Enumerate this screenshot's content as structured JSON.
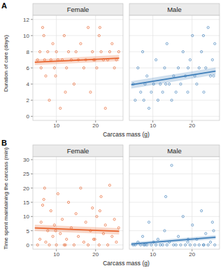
{
  "chart_data": [
    {
      "type": "scatter",
      "annotation": "A",
      "y_label": "Duration of care (days)",
      "x_label": "Carcass mass (g)",
      "xlim": [
        4,
        27
      ],
      "xticks": [
        10,
        20
      ],
      "ylim": [
        -0.5,
        12.5
      ],
      "yticks": [
        0,
        2,
        4,
        6,
        8,
        10,
        12
      ],
      "grid": true,
      "marker": "circle",
      "facets": [
        {
          "name": "Female",
          "color": "#e8632c",
          "x": [
            5.2,
            5.8,
            6.1,
            6.5,
            7.0,
            7.3,
            7.8,
            8.2,
            8.6,
            9.1,
            9.5,
            10.0,
            10.4,
            11.0,
            11.5,
            12.0,
            12.6,
            13.1,
            13.8,
            14.5,
            15.0,
            15.6,
            16.2,
            17.0,
            17.5,
            18.1,
            18.7,
            19.2,
            19.8,
            20.3,
            20.9,
            21.4,
            22.0,
            22.5,
            23.1,
            23.6,
            24.2,
            24.8,
            25.3,
            25.9,
            6.8,
            12.3,
            19.5,
            21.1,
            9.8
          ],
          "values": [
            7,
            8,
            6,
            11,
            7,
            5,
            8,
            2,
            7,
            9,
            6,
            8,
            7,
            1,
            7,
            10,
            6,
            8,
            7,
            4,
            8,
            7,
            9,
            6,
            7,
            11,
            3,
            8,
            7,
            6,
            10,
            8,
            7,
            1,
            7,
            8,
            9,
            6,
            7,
            8,
            10,
            3,
            7,
            11,
            5
          ],
          "trend": {
            "x": [
              4.5,
              26
            ],
            "values": [
              6.7,
              7.2
            ],
            "lower": [
              6.35,
              6.85
            ],
            "upper": [
              7.05,
              7.6
            ]
          }
        },
        {
          "name": "Male",
          "color": "#3f7fba",
          "x": [
            5.0,
            5.5,
            6.2,
            6.9,
            7.4,
            8.0,
            8.5,
            9.0,
            9.6,
            10.2,
            10.8,
            11.3,
            11.9,
            12.5,
            13.0,
            13.6,
            14.2,
            14.8,
            15.3,
            15.9,
            16.5,
            17.1,
            17.7,
            18.3,
            18.9,
            19.5,
            20.1,
            20.7,
            21.2,
            21.8,
            22.4,
            23.0,
            23.5,
            24.1,
            24.7,
            25.2,
            25.8,
            7.7,
            13.3,
            19.0,
            22.9,
            25.5
          ],
          "values": [
            4,
            2,
            6,
            3,
            8,
            4,
            5,
            1,
            3,
            4,
            7,
            2,
            4,
            3,
            6,
            9,
            4,
            2,
            5,
            3,
            6,
            4,
            8,
            5,
            3,
            7,
            10,
            5,
            4,
            6,
            8,
            3,
            6,
            11,
            5,
            7,
            9,
            2,
            4,
            6,
            10,
            5
          ],
          "trend": {
            "x": [
              4.5,
              26
            ],
            "values": [
              3.9,
              5.6
            ],
            "lower": [
              3.45,
              5.15
            ],
            "upper": [
              4.35,
              6.05
            ]
          }
        }
      ]
    },
    {
      "type": "scatter",
      "annotation": "B",
      "y_label": "Time spent maintaining the carcass (min)",
      "x_label": "Carcass mass (g)",
      "xlim": [
        4,
        27
      ],
      "xticks": [
        10,
        20
      ],
      "ylim": [
        -1.5,
        31
      ],
      "yticks": [
        0,
        5,
        10,
        15,
        20,
        25,
        30
      ],
      "grid": true,
      "marker": "circle",
      "facets": [
        {
          "name": "Female",
          "color": "#e8632c",
          "x": [
            5.2,
            5.8,
            6.1,
            6.5,
            7.0,
            7.3,
            7.8,
            8.2,
            8.6,
            9.1,
            9.5,
            10.0,
            10.4,
            11.0,
            11.5,
            12.0,
            12.6,
            13.1,
            13.8,
            14.5,
            15.0,
            15.6,
            16.2,
            17.0,
            17.5,
            18.1,
            18.7,
            19.2,
            19.8,
            20.3,
            20.9,
            21.4,
            22.0,
            22.5,
            23.1,
            23.6,
            24.2,
            24.8,
            25.3,
            25.9,
            6.8,
            12.3,
            19.5,
            21.1,
            9.8
          ],
          "values": [
            0,
            2,
            8,
            14,
            20,
            1,
            5,
            0,
            12,
            3,
            7,
            0,
            18,
            4,
            9,
            0,
            2,
            15,
            6,
            0,
            11,
            3,
            20,
            1,
            8,
            0,
            5,
            13,
            2,
            10,
            0,
            17,
            4,
            7,
            0,
            21,
            3,
            9,
            1,
            6,
            16,
            0,
            2,
            12,
            5
          ],
          "trend": {
            "x": [
              4.5,
              26
            ],
            "values": [
              6.0,
              4.8
            ],
            "lower": [
              4.9,
              3.7
            ],
            "upper": [
              7.1,
              5.9
            ]
          }
        },
        {
          "name": "Male",
          "color": "#3f7fba",
          "x": [
            5.0,
            5.5,
            6.2,
            6.9,
            7.4,
            8.0,
            8.5,
            9.0,
            9.6,
            10.2,
            10.8,
            11.3,
            11.9,
            12.5,
            13.0,
            13.6,
            14.2,
            14.8,
            15.3,
            15.9,
            16.5,
            17.1,
            17.7,
            18.3,
            18.9,
            19.5,
            20.1,
            20.7,
            21.2,
            21.8,
            22.4,
            23.0,
            23.5,
            24.1,
            24.7,
            25.2,
            25.8,
            7.7,
            13.3,
            19.0,
            22.9,
            25.5
          ],
          "values": [
            0,
            0,
            1,
            0,
            3,
            0,
            0,
            8,
            0,
            1,
            0,
            2,
            0,
            0,
            5,
            0,
            1,
            28,
            0,
            0,
            3,
            0,
            10,
            0,
            1,
            0,
            7,
            0,
            2,
            0,
            12,
            0,
            4,
            0,
            1,
            8,
            0,
            0,
            17,
            2,
            0,
            5
          ],
          "trend": {
            "x": [
              4.5,
              26
            ],
            "values": [
              0.3,
              2.7
            ],
            "lower": [
              -0.3,
              2.0
            ],
            "upper": [
              0.9,
              3.4
            ]
          }
        }
      ]
    }
  ]
}
